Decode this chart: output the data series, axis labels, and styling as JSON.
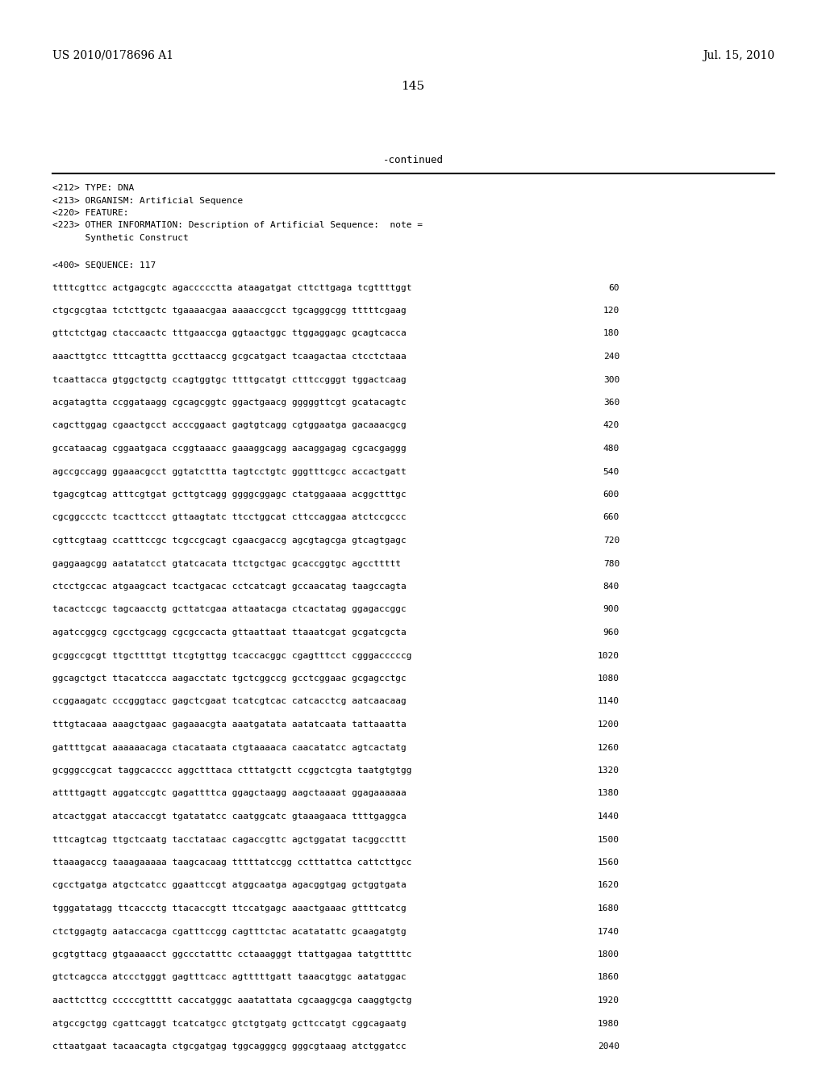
{
  "background_color": "#ffffff",
  "header_left": "US 2010/0178696 A1",
  "header_right": "Jul. 15, 2010",
  "page_number": "145",
  "continued_text": "-continued",
  "metadata_lines": [
    "<212> TYPE: DNA",
    "<213> ORGANISM: Artificial Sequence",
    "<220> FEATURE:",
    "<223> OTHER INFORMATION: Description of Artificial Sequence:  note =",
    "      Synthetic Construct"
  ],
  "sequence_header": "<400> SEQUENCE: 117",
  "sequence_lines": [
    [
      "ttttcgttcc actgagcgtc agaccccctta ataagatgat cttcttgaga tcgttttggt",
      "60"
    ],
    [
      "ctgcgcgtaa tctcttgctc tgaaaacgaa aaaaccgcct tgcagggcgg tttttcgaag",
      "120"
    ],
    [
      "gttctctgag ctaccaactc tttgaaccga ggtaactggc ttggaggagc gcagtcacca",
      "180"
    ],
    [
      "aaacttgtcc tttcagttta gccttaaccg gcgcatgact tcaagactaa ctcctctaaa",
      "240"
    ],
    [
      "tcaattacca gtggctgctg ccagtggtgc ttttgcatgt ctttccgggt tggactcaag",
      "300"
    ],
    [
      "acgatagtta ccggataagg cgcagcggtc ggactgaacg gggggttcgt gcatacagtc",
      "360"
    ],
    [
      "cagcttggag cgaactgcct acccggaact gagtgtcagg cgtggaatga gacaaacgcg",
      "420"
    ],
    [
      "gccataacag cggaatgaca ccggtaaacc gaaaggcagg aacaggagag cgcacgaggg",
      "480"
    ],
    [
      "agccgccagg ggaaacgcct ggtatcttta tagtcctgtc gggtttcgcc accactgatt",
      "540"
    ],
    [
      "tgagcgtcag atttcgtgat gcttgtcagg ggggcggagc ctatggaaaa acggctttgc",
      "600"
    ],
    [
      "cgcggccctc tcacttccct gttaagtatc ttcctggcat cttccaggaa atctccgccc",
      "660"
    ],
    [
      "cgttcgtaag ccatttccgc tcgccgcagt cgaacgaccg agcgtagcga gtcagtgagc",
      "720"
    ],
    [
      "gaggaagcgg aatatatcct gtatcacata ttctgctgac gcaccggtgc agccttttt",
      "780"
    ],
    [
      "ctcctgccac atgaagcact tcactgacac cctcatcagt gccaacatag taagccagta",
      "840"
    ],
    [
      "tacactccgc tagcaacctg gcttatcgaa attaatacga ctcactatag ggagaccggc",
      "900"
    ],
    [
      "agatccggcg cgcctgcagg cgcgccacta gttaattaat ttaaatcgat gcgatcgcta",
      "960"
    ],
    [
      "gcggccgcgt ttgcttttgt ttcgtgttgg tcaccacggc cgagtttcct cgggacccccg",
      "1020"
    ],
    [
      "ggcagctgct ttacatccca aagacctatc tgctcggccg gcctcggaac gcgagcctgc",
      "1080"
    ],
    [
      "ccggaagatc cccgggtacc gagctcgaat tcatcgtcac catcacctcg aatcaacaag",
      "1140"
    ],
    [
      "tttgtacaaa aaagctgaac gagaaacgta aaatgatata aatatcaata tattaaatta",
      "1200"
    ],
    [
      "gattttgcat aaaaaacaga ctacataata ctgtaaaaca caacatatcc agtcactatg",
      "1260"
    ],
    [
      "gcgggccgcat taggcacccc aggctttaca ctttatgctt ccggctcgta taatgtgtgg",
      "1320"
    ],
    [
      "attttgagtt aggatccgtc gagattttca ggagctaagg aagctaaaat ggagaaaaaa",
      "1380"
    ],
    [
      "atcactggat ataccaccgt tgatatatcc caatggcatc gtaaagaaca ttttgaggca",
      "1440"
    ],
    [
      "tttcagtcag ttgctcaatg tacctataac cagaccgttc agctggatat tacggccttt",
      "1500"
    ],
    [
      "ttaaagaccg taaagaaaaa taagcacaag tttttatccgg cctttattca cattcttgcc",
      "1560"
    ],
    [
      "cgcctgatga atgctcatcc ggaattccgt atggcaatga agacggtgag gctggtgata",
      "1620"
    ],
    [
      "tgggatatagg ttcaccctg ttacaccgtt ttccatgagc aaactgaaac gttttcatcg",
      "1680"
    ],
    [
      "ctctggagtg aataccacga cgatttccgg cagtttctac acatatattc gcaagatgtg",
      "1740"
    ],
    [
      "gcgtgttacg gtgaaaacct ggccctatttc cctaaagggt ttattgagaa tatgtttttc",
      "1800"
    ],
    [
      "gtctcagcca atccctgggt gagtttcacc agtttttgatt taaacgtggc aatatggac",
      "1860"
    ],
    [
      "aacttcttcg cccccgttttt caccatgggc aaatattata cgcaaggcga caaggtgctg",
      "1920"
    ],
    [
      "atgccgctgg cgattcaggt tcatcatgcc gtctgtgatg gcttccatgt cggcagaatg",
      "1980"
    ],
    [
      "cttaatgaat tacaacagta ctgcgatgag tggcagggcg gggcgtaaag atctggatcc",
      "2040"
    ]
  ]
}
